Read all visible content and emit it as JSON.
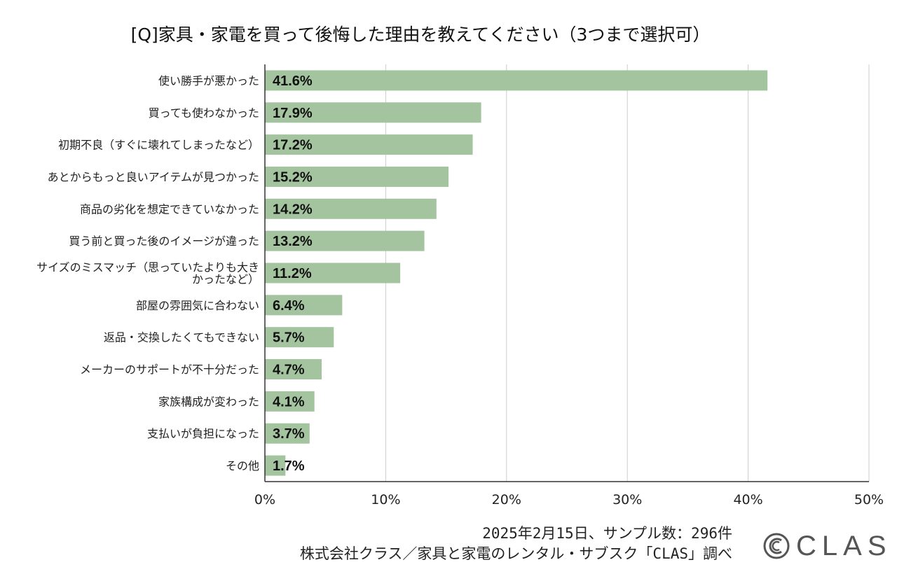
{
  "chart_data": {
    "type": "bar",
    "orientation": "horizontal",
    "title": "[Q]家具・家電を買って後悔した理由を教えてください（3つまで選択可）",
    "categories": [
      "使い勝手が悪かった",
      "買っても使わなかった",
      "初期不良（すぐに壊れてしまったなど）",
      "あとからもっと良いアイテムが見つかった",
      "商品の劣化を想定できていなかった",
      "買う前と買った後のイメージが違った",
      [
        "サイズのミスマッチ（思っていたよりも大き",
        "かったなど）"
      ],
      "部屋の雰囲気に合わない",
      "返品・交換したくてもできない",
      "メーカーのサポートが不十分だった",
      "家族構成が変わった",
      "支払いが負担になった",
      "その他"
    ],
    "values": [
      41.6,
      17.9,
      17.2,
      15.2,
      14.2,
      13.2,
      11.2,
      6.4,
      5.7,
      4.7,
      4.1,
      3.7,
      1.7
    ],
    "data_labels": [
      "41.6%",
      "17.9%",
      "17.2%",
      "15.2%",
      "14.2%",
      "13.2%",
      "11.2%",
      "6.4%",
      "5.7%",
      "4.7%",
      "4.1%",
      "3.7%",
      "1.7%"
    ],
    "xlim": [
      0,
      50
    ],
    "xticks": [
      0,
      10,
      20,
      30,
      40,
      50
    ],
    "xtick_labels": [
      "0%",
      "10%",
      "20%",
      "30%",
      "40%",
      "50%"
    ],
    "xlabel": "",
    "ylabel": "",
    "grid": true,
    "bar_color": "#a3c49f"
  },
  "footer": {
    "line1": "2025年2月15日、サンプル数：296件",
    "line2": "株式会社クラス／家具と家電のレンタル・サブスク「CLAS」調べ"
  },
  "logo": {
    "text": "CLAS",
    "icon": "clas-logo-icon"
  }
}
